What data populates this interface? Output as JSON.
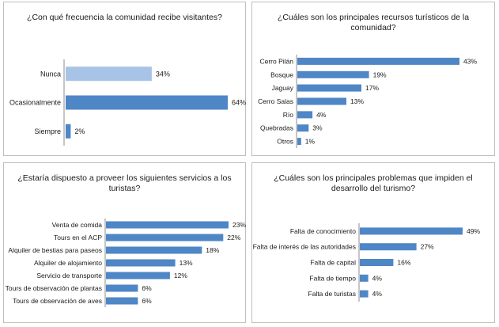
{
  "colors": {
    "bar": "#4e86c6",
    "bar_light": "#a7c3e6",
    "axis": "#8c8c8c"
  },
  "chart_data": [
    {
      "type": "bar",
      "orientation": "horizontal",
      "title": "¿Con qué frecuencia la comunidad recibe visitantes?",
      "categories": [
        "Nunca",
        "Ocasionalmente",
        "Siempre"
      ],
      "values": [
        34,
        64,
        2
      ],
      "data_labels": [
        "34%",
        "64%",
        "2%"
      ],
      "xlim": [
        0,
        64
      ],
      "grid": false,
      "legend": "none"
    },
    {
      "type": "bar",
      "orientation": "horizontal",
      "title": "¿Cuáles son los principales recursos turísticos de la comunidad?",
      "categories": [
        "Cerro Pilán",
        "Bosque",
        "Jaguay",
        "Cerro Salas",
        "Río",
        "Quebradas",
        "Otros"
      ],
      "values": [
        43,
        19,
        17,
        13,
        4,
        3,
        1
      ],
      "data_labels": [
        "43%",
        "19%",
        "17%",
        "13%",
        "4%",
        "3%",
        "1%"
      ],
      "xlim": [
        0,
        43
      ],
      "grid": false,
      "legend": "none"
    },
    {
      "type": "bar",
      "orientation": "horizontal",
      "title": "¿Estaría dispuesto a proveer los siguientes servicios a los turistas?",
      "categories": [
        "Venta de comida",
        "Tours en el ACP",
        "Alquiler de bestias para paseos",
        "Alquiler de alojamiento",
        "Servicio de transporte",
        "Tours de observación de plantas",
        "Tours de observación de aves"
      ],
      "values": [
        23,
        22,
        18,
        13,
        12,
        6,
        6
      ],
      "data_labels": [
        "23%",
        "22%",
        "18%",
        "13%",
        "12%",
        "6%",
        "6%"
      ],
      "xlim": [
        0,
        23
      ],
      "grid": false,
      "legend": "none"
    },
    {
      "type": "bar",
      "orientation": "horizontal",
      "title": "¿Cuáles son los principales problemas que impiden el desarrollo del turismo?",
      "categories": [
        "Falta de conocimiento",
        "Falta de interés de las autoridades",
        "Falta de capital",
        "Falta de tiempo",
        "Falta de turistas"
      ],
      "values": [
        49,
        27,
        16,
        4,
        4
      ],
      "data_labels": [
        "49%",
        "27%",
        "16%",
        "4%",
        "4%"
      ],
      "xlim": [
        0,
        49
      ],
      "grid": false,
      "legend": "none"
    }
  ]
}
